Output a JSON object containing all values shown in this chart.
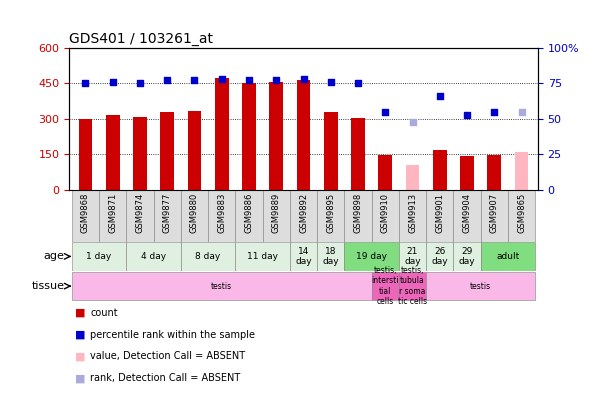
{
  "title": "GDS401 / 103261_at",
  "samples": [
    "GSM9868",
    "GSM9871",
    "GSM9874",
    "GSM9877",
    "GSM9880",
    "GSM9883",
    "GSM9886",
    "GSM9889",
    "GSM9892",
    "GSM9895",
    "GSM9898",
    "GSM9910",
    "GSM9913",
    "GSM9901",
    "GSM9904",
    "GSM9907",
    "GSM9865"
  ],
  "count_values": [
    300,
    318,
    308,
    330,
    332,
    470,
    452,
    455,
    465,
    330,
    305,
    148,
    null,
    168,
    143,
    148,
    null
  ],
  "count_absent": [
    null,
    null,
    null,
    null,
    null,
    null,
    null,
    null,
    null,
    null,
    null,
    null,
    105,
    null,
    null,
    null,
    160
  ],
  "rank_values": [
    75,
    76,
    75,
    77,
    77,
    78,
    77,
    77,
    78,
    76,
    75,
    55,
    null,
    66,
    53,
    55,
    null
  ],
  "rank_absent": [
    null,
    null,
    null,
    null,
    null,
    null,
    null,
    null,
    null,
    null,
    null,
    null,
    48,
    null,
    null,
    null,
    55
  ],
  "count_color": "#cc0000",
  "count_absent_color": "#ffb6c1",
  "rank_color": "#0000cc",
  "rank_absent_color": "#aaaadd",
  "ylim_left": [
    0,
    600
  ],
  "ylim_right": [
    0,
    100
  ],
  "yticks_left": [
    0,
    150,
    300,
    450,
    600
  ],
  "yticks_right": [
    0,
    25,
    50,
    75,
    100
  ],
  "age_groups": [
    {
      "label": "1 day",
      "start": 0,
      "end": 2,
      "color": "#e0f0e0"
    },
    {
      "label": "4 day",
      "start": 2,
      "end": 4,
      "color": "#e0f0e0"
    },
    {
      "label": "8 day",
      "start": 4,
      "end": 6,
      "color": "#e0f0e0"
    },
    {
      "label": "11 day",
      "start": 6,
      "end": 8,
      "color": "#e0f0e0"
    },
    {
      "label": "14\nday",
      "start": 8,
      "end": 9,
      "color": "#e0f0e0"
    },
    {
      "label": "18\nday",
      "start": 9,
      "end": 10,
      "color": "#e0f0e0"
    },
    {
      "label": "19 day",
      "start": 10,
      "end": 12,
      "color": "#80dd80"
    },
    {
      "label": "21\nday",
      "start": 12,
      "end": 13,
      "color": "#e0f0e0"
    },
    {
      "label": "26\nday",
      "start": 13,
      "end": 14,
      "color": "#e0f0e0"
    },
    {
      "label": "29\nday",
      "start": 14,
      "end": 15,
      "color": "#e0f0e0"
    },
    {
      "label": "adult",
      "start": 15,
      "end": 17,
      "color": "#80dd80"
    }
  ],
  "tissue_groups": [
    {
      "label": "testis",
      "start": 0,
      "end": 11,
      "color": "#f9b8e8"
    },
    {
      "label": "testis,\nintersti\ntial\ncells",
      "start": 11,
      "end": 12,
      "color": "#ee66bb"
    },
    {
      "label": "testis,\ntubula\nr soma\ntic cells",
      "start": 12,
      "end": 13,
      "color": "#ee66bb"
    },
    {
      "label": "testis",
      "start": 13,
      "end": 17,
      "color": "#f9b8e8"
    }
  ],
  "bar_width": 0.5,
  "background_color": "#ffffff"
}
